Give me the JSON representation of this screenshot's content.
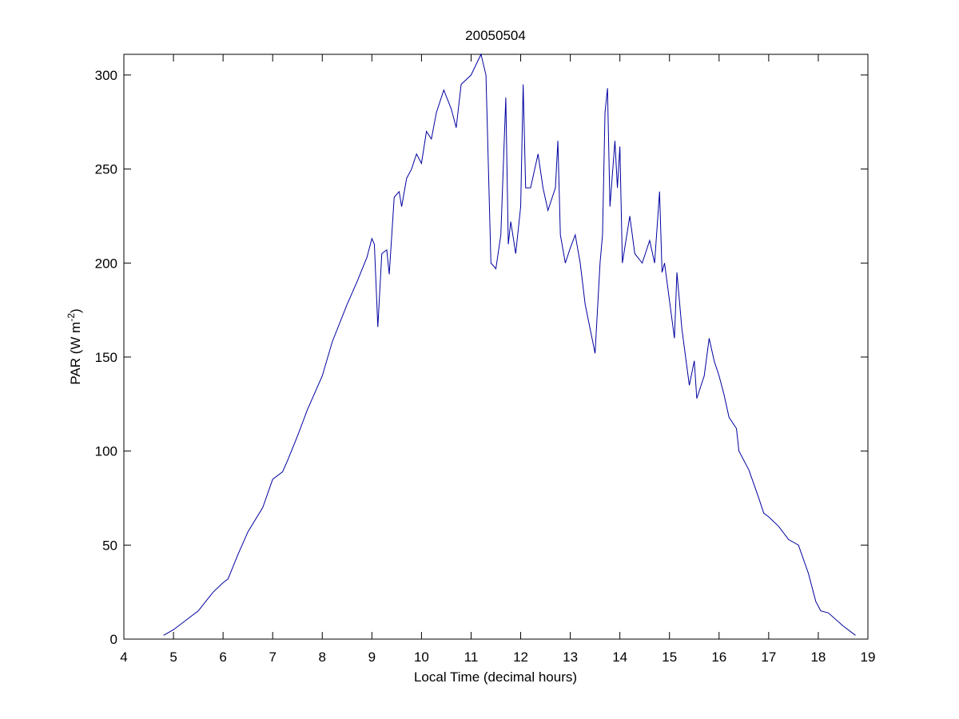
{
  "chart_data": {
    "type": "line",
    "title": "20050504",
    "x_label": "Local Time (decimal hours)",
    "y_label": {
      "text": "PAR (W m",
      "superscript": "-2",
      "suffix": ")"
    },
    "xlim": [
      4,
      19
    ],
    "xticks": [
      4,
      5,
      6,
      7,
      8,
      9,
      10,
      11,
      12,
      13,
      14,
      15,
      16,
      17,
      18,
      19
    ],
    "ylim": [
      0,
      311
    ],
    "yticks": [
      0,
      50,
      100,
      150,
      200,
      250,
      300
    ],
    "grid": false,
    "series": [
      {
        "name": "PAR",
        "color": "#0000a0",
        "x": [
          4.8,
          5,
          5.5,
          5.8,
          6,
          6.1,
          6.3,
          6.5,
          6.8,
          7,
          7.2,
          7.3,
          7.5,
          7.7,
          8,
          8.2,
          8.5,
          8.7,
          8.9,
          9.0,
          9.05,
          9.12,
          9.2,
          9.3,
          9.35,
          9.45,
          9.55,
          9.6,
          9.7,
          9.8,
          9.9,
          10.0,
          10.1,
          10.2,
          10.3,
          10.45,
          10.6,
          10.7,
          10.8,
          11.0,
          11.2,
          11.3,
          11.35,
          11.4,
          11.5,
          11.6,
          11.7,
          11.75,
          11.8,
          11.9,
          12.0,
          12.05,
          12.1,
          12.2,
          12.35,
          12.45,
          12.55,
          12.7,
          12.75,
          12.8,
          12.9,
          13.0,
          13.1,
          13.2,
          13.3,
          13.4,
          13.5,
          13.6,
          13.65,
          13.7,
          13.75,
          13.8,
          13.9,
          13.95,
          14.0,
          14.05,
          14.2,
          14.3,
          14.45,
          14.6,
          14.7,
          14.8,
          14.85,
          14.9,
          15.0,
          15.1,
          15.15,
          15.25,
          15.4,
          15.5,
          15.55,
          15.7,
          15.8,
          15.9,
          16.0,
          16.1,
          16.2,
          16.35,
          16.4,
          16.6,
          16.8,
          16.9,
          17.0,
          17.2,
          17.4,
          17.6,
          17.8,
          17.95,
          18.05,
          18.2,
          18.5,
          18.75
        ],
        "values": [
          2,
          5,
          15,
          25,
          30,
          32,
          45,
          57,
          70,
          85,
          89,
          95,
          108,
          122,
          140,
          158,
          178,
          190,
          203,
          213,
          210,
          166,
          205,
          207,
          194,
          235,
          238,
          230,
          245,
          250,
          258,
          253,
          270,
          266,
          280,
          292,
          282,
          272,
          295,
          300,
          311,
          300,
          250,
          200,
          197,
          215,
          288,
          210,
          222,
          205,
          230,
          295,
          240,
          240,
          258,
          240,
          228,
          240,
          265,
          215,
          200,
          208,
          215,
          200,
          178,
          165,
          152,
          200,
          215,
          280,
          293,
          230,
          265,
          240,
          262,
          200,
          225,
          205,
          200,
          212,
          200,
          238,
          195,
          200,
          180,
          160,
          195,
          165,
          135,
          148,
          128,
          140,
          160,
          148,
          140,
          130,
          118,
          112,
          100,
          90,
          75,
          67,
          65,
          60,
          53,
          50,
          35,
          20,
          15,
          14,
          7,
          2
        ]
      }
    ]
  }
}
